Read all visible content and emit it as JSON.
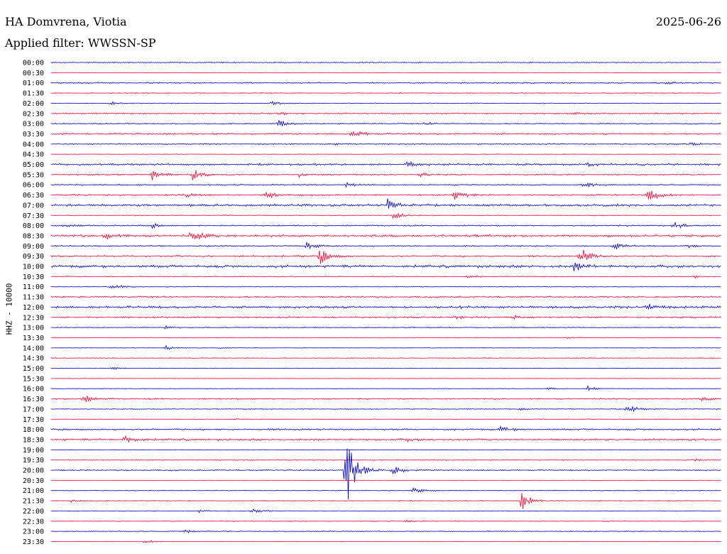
{
  "header": {
    "station": "HA Domvrena, Viotia",
    "date": "2025-06-26",
    "filter": "Applied filter: WWSSN-SP"
  },
  "chart_data": {
    "type": "line",
    "title": "HA Domvrena, Viotia",
    "date": "2025-06-26",
    "filter": "Applied filter: WWSSN-SP",
    "ylabel": "HHZ - 10000",
    "trace_colors": [
      "#0000cc",
      "#ff0033"
    ],
    "rows": [
      {
        "label": "00:00",
        "color": "#0000cc",
        "noise": 0.6,
        "events": []
      },
      {
        "label": "00:30",
        "color": "#ff0033",
        "noise": 0.3,
        "events": []
      },
      {
        "label": "01:00",
        "color": "#0000cc",
        "noise": 0.8,
        "events": [
          {
            "t": 0.92,
            "amp": 2
          }
        ]
      },
      {
        "label": "01:30",
        "color": "#ff0033",
        "noise": 0.5,
        "events": []
      },
      {
        "label": "02:00",
        "color": "#0000cc",
        "noise": 0.5,
        "events": [
          {
            "t": 0.09,
            "amp": 2
          },
          {
            "t": 0.33,
            "amp": 3
          }
        ]
      },
      {
        "label": "02:30",
        "color": "#ff0033",
        "noise": 0.8,
        "events": [
          {
            "t": 0.34,
            "amp": 2
          },
          {
            "t": 0.78,
            "amp": 2
          }
        ]
      },
      {
        "label": "03:00",
        "color": "#0000cc",
        "noise": 0.7,
        "events": [
          {
            "t": 0.34,
            "amp": 5
          },
          {
            "t": 0.56,
            "amp": 2
          }
        ]
      },
      {
        "label": "03:30",
        "color": "#ff0033",
        "noise": 1.0,
        "events": [
          {
            "t": 0.45,
            "amp": 6
          }
        ]
      },
      {
        "label": "04:00",
        "color": "#0000cc",
        "noise": 0.7,
        "events": [
          {
            "t": 0.42,
            "amp": 2
          },
          {
            "t": 0.95,
            "amp": 3
          }
        ]
      },
      {
        "label": "04:30",
        "color": "#ff0033",
        "noise": 0.4,
        "events": []
      },
      {
        "label": "05:00",
        "color": "#0000cc",
        "noise": 1.2,
        "events": [
          {
            "t": 0.53,
            "amp": 4
          },
          {
            "t": 0.8,
            "amp": 2
          }
        ]
      },
      {
        "label": "05:30",
        "color": "#ff0033",
        "noise": 0.8,
        "events": [
          {
            "t": 0.15,
            "amp": 9
          },
          {
            "t": 0.21,
            "amp": 10
          },
          {
            "t": 0.37,
            "amp": 3
          },
          {
            "t": 0.55,
            "amp": 4
          }
        ]
      },
      {
        "label": "06:00",
        "color": "#0000cc",
        "noise": 0.8,
        "events": [
          {
            "t": 0.44,
            "amp": 3
          },
          {
            "t": 0.79,
            "amp": 6
          }
        ]
      },
      {
        "label": "06:30",
        "color": "#ff0033",
        "noise": 1.0,
        "events": [
          {
            "t": 0.2,
            "amp": 3
          },
          {
            "t": 0.32,
            "amp": 6
          },
          {
            "t": 0.6,
            "amp": 8
          },
          {
            "t": 0.89,
            "amp": 12
          }
        ]
      },
      {
        "label": "07:00",
        "color": "#0000cc",
        "noise": 1.4,
        "events": [
          {
            "t": 0.5,
            "amp": 12
          }
        ]
      },
      {
        "label": "07:30",
        "color": "#ff0033",
        "noise": 0.5,
        "events": [
          {
            "t": 0.51,
            "amp": 6
          }
        ]
      },
      {
        "label": "08:00",
        "color": "#0000cc",
        "noise": 0.8,
        "events": [
          {
            "t": 0.02,
            "amp": 3
          },
          {
            "t": 0.15,
            "amp": 4
          },
          {
            "t": 0.93,
            "amp": 5
          }
        ]
      },
      {
        "label": "08:30",
        "color": "#ff0033",
        "noise": 1.4,
        "events": [
          {
            "t": 0.08,
            "amp": 6
          },
          {
            "t": 0.21,
            "amp": 9
          }
        ]
      },
      {
        "label": "09:00",
        "color": "#0000cc",
        "noise": 0.8,
        "events": [
          {
            "t": 0.38,
            "amp": 6
          },
          {
            "t": 0.84,
            "amp": 5
          },
          {
            "t": 0.95,
            "amp": 2
          }
        ]
      },
      {
        "label": "09:30",
        "color": "#ff0033",
        "noise": 1.0,
        "events": [
          {
            "t": 0.4,
            "amp": 12
          },
          {
            "t": 0.79,
            "amp": 12
          }
        ]
      },
      {
        "label": "10:00",
        "color": "#0000cc",
        "noise": 1.6,
        "events": [
          {
            "t": 0.78,
            "amp": 8
          }
        ]
      },
      {
        "label": "10:30",
        "color": "#ff0033",
        "noise": 0.6,
        "events": [
          {
            "t": 0.62,
            "amp": 2
          },
          {
            "t": 0.96,
            "amp": 2
          }
        ]
      },
      {
        "label": "11:00",
        "color": "#0000cc",
        "noise": 0.5,
        "events": [
          {
            "t": 0.09,
            "amp": 5
          }
        ]
      },
      {
        "label": "11:30",
        "color": "#ff0033",
        "noise": 1.0,
        "events": []
      },
      {
        "label": "12:00",
        "color": "#0000cc",
        "noise": 1.4,
        "events": [
          {
            "t": 0.6,
            "amp": 3
          },
          {
            "t": 0.89,
            "amp": 6
          }
        ]
      },
      {
        "label": "12:30",
        "color": "#ff0033",
        "noise": 1.0,
        "events": [
          {
            "t": 0.6,
            "amp": 3
          },
          {
            "t": 0.69,
            "amp": 3
          }
        ]
      },
      {
        "label": "13:00",
        "color": "#0000cc",
        "noise": 0.6,
        "events": [
          {
            "t": 0.17,
            "amp": 2
          }
        ]
      },
      {
        "label": "13:30",
        "color": "#ff0033",
        "noise": 0.4,
        "events": [
          {
            "t": 0.77,
            "amp": 2
          }
        ]
      },
      {
        "label": "14:00",
        "color": "#0000cc",
        "noise": 0.3,
        "events": [
          {
            "t": 0.17,
            "amp": 4
          },
          {
            "t": 0.25,
            "amp": 2
          }
        ]
      },
      {
        "label": "14:30",
        "color": "#ff0033",
        "noise": 0.5,
        "events": []
      },
      {
        "label": "15:00",
        "color": "#0000cc",
        "noise": 0.4,
        "events": [
          {
            "t": 0.09,
            "amp": 2
          }
        ]
      },
      {
        "label": "15:30",
        "color": "#ff0033",
        "noise": 0.3,
        "events": []
      },
      {
        "label": "16:00",
        "color": "#0000cc",
        "noise": 0.3,
        "events": [
          {
            "t": 0.74,
            "amp": 2
          },
          {
            "t": 0.8,
            "amp": 4
          }
        ]
      },
      {
        "label": "16:30",
        "color": "#ff0033",
        "noise": 0.9,
        "events": [
          {
            "t": 0.05,
            "amp": 5
          },
          {
            "t": 0.97,
            "amp": 3
          }
        ]
      },
      {
        "label": "17:00",
        "color": "#0000cc",
        "noise": 0.5,
        "events": [
          {
            "t": 0.7,
            "amp": 2
          },
          {
            "t": 0.86,
            "amp": 6
          }
        ]
      },
      {
        "label": "17:30",
        "color": "#ff0033",
        "noise": 0.4,
        "events": [
          {
            "t": 0.27,
            "amp": 1
          }
        ]
      },
      {
        "label": "18:00",
        "color": "#0000cc",
        "noise": 1.0,
        "events": [
          {
            "t": 0.67,
            "amp": 4
          }
        ]
      },
      {
        "label": "18:30",
        "color": "#ff0033",
        "noise": 1.2,
        "events": [
          {
            "t": 0.11,
            "amp": 7
          },
          {
            "t": 0.53,
            "amp": 2
          }
        ]
      },
      {
        "label": "19:00",
        "color": "#0000cc",
        "noise": 0.3,
        "events": []
      },
      {
        "label": "19:30",
        "color": "#ff0033",
        "noise": 0.6,
        "events": [
          {
            "t": 0.96,
            "amp": 2
          }
        ]
      },
      {
        "label": "20:00",
        "color": "#0000cc",
        "noise": 0.8,
        "events": [
          {
            "t": 0.44,
            "amp": 55
          },
          {
            "t": 0.51,
            "amp": 7
          }
        ]
      },
      {
        "label": "20:30",
        "color": "#ff0033",
        "noise": 0.3,
        "events": []
      },
      {
        "label": "21:00",
        "color": "#0000cc",
        "noise": 0.5,
        "events": [
          {
            "t": 0.54,
            "amp": 4
          }
        ]
      },
      {
        "label": "21:30",
        "color": "#ff0033",
        "noise": 0.5,
        "events": [
          {
            "t": 0.03,
            "amp": 2
          },
          {
            "t": 0.7,
            "amp": 18
          }
        ]
      },
      {
        "label": "22:00",
        "color": "#0000cc",
        "noise": 0.4,
        "events": [
          {
            "t": 0.22,
            "amp": 2
          },
          {
            "t": 0.3,
            "amp": 3
          }
        ]
      },
      {
        "label": "22:30",
        "color": "#ff0033",
        "noise": 0.5,
        "events": [
          {
            "t": 0.53,
            "amp": 2
          }
        ]
      },
      {
        "label": "23:00",
        "color": "#0000cc",
        "noise": 0.6,
        "events": [
          {
            "t": 0.2,
            "amp": 2
          }
        ]
      },
      {
        "label": "23:30",
        "color": "#ff0033",
        "noise": 0.3,
        "events": [
          {
            "t": 0.14,
            "amp": 3
          }
        ]
      }
    ]
  }
}
